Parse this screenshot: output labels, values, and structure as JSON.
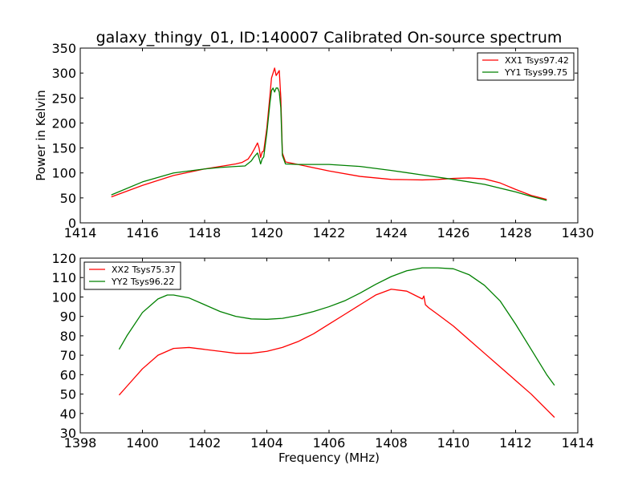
{
  "chart_data": [
    {
      "type": "line",
      "title": "galaxy_thingy_01, ID:140007 Calibrated On-source spectrum",
      "xlabel": "",
      "ylabel": "Power in Kelvin",
      "xlim": [
        1414,
        1430
      ],
      "ylim": [
        0,
        350
      ],
      "xticks": [
        "1414",
        "1416",
        "1418",
        "1420",
        "1422",
        "1424",
        "1426",
        "1428",
        "1430"
      ],
      "yticks": [
        "0",
        "50",
        "100",
        "150",
        "200",
        "250",
        "300",
        "350"
      ],
      "legend_position": "top-right",
      "series": [
        {
          "name": "XX1 Tsys97.42",
          "color": "#ff0000",
          "x": [
            1415.0,
            1416.0,
            1417.0,
            1418.0,
            1418.5,
            1419.0,
            1419.2,
            1419.4,
            1419.5,
            1419.6,
            1419.7,
            1419.75,
            1419.8,
            1419.85,
            1419.9,
            1420.0,
            1420.1,
            1420.15,
            1420.2,
            1420.25,
            1420.3,
            1420.35,
            1420.4,
            1420.45,
            1420.5,
            1420.6,
            1421.0,
            1422.0,
            1423.0,
            1424.0,
            1425.0,
            1425.5,
            1426.0,
            1426.5,
            1427.0,
            1427.5,
            1428.0,
            1428.5,
            1429.0
          ],
          "y": [
            52,
            75,
            95,
            108,
            113,
            118,
            121,
            128,
            137,
            148,
            160,
            150,
            131,
            142,
            144,
            190,
            255,
            290,
            300,
            310,
            295,
            300,
            305,
            250,
            140,
            122,
            117,
            104,
            93,
            87,
            86,
            87,
            89,
            90,
            88,
            80,
            67,
            55,
            47
          ]
        },
        {
          "name": "YY1 Tsys99.75",
          "color": "#008000",
          "x": [
            1415.0,
            1416.0,
            1417.0,
            1418.0,
            1418.5,
            1419.0,
            1419.3,
            1419.5,
            1419.6,
            1419.7,
            1419.75,
            1419.8,
            1419.85,
            1419.9,
            1420.0,
            1420.1,
            1420.15,
            1420.2,
            1420.25,
            1420.3,
            1420.35,
            1420.4,
            1420.45,
            1420.5,
            1420.6,
            1421.0,
            1422.0,
            1423.0,
            1424.0,
            1425.0,
            1426.0,
            1427.0,
            1428.0,
            1428.5,
            1429.0
          ],
          "y": [
            56,
            82,
            100,
            108,
            111,
            113,
            114,
            124,
            133,
            140,
            130,
            118,
            128,
            132,
            180,
            240,
            265,
            270,
            262,
            270,
            270,
            262,
            230,
            135,
            118,
            117,
            117,
            113,
            105,
            96,
            87,
            77,
            62,
            53,
            45
          ]
        }
      ]
    },
    {
      "type": "line",
      "title": "",
      "xlabel": "Frequency (MHz)",
      "ylabel": "",
      "xlim": [
        1398,
        1414
      ],
      "ylim": [
        30,
        120
      ],
      "xticks": [
        "1398",
        "1400",
        "1402",
        "1404",
        "1406",
        "1408",
        "1410",
        "1412",
        "1414"
      ],
      "yticks": [
        "30",
        "40",
        "50",
        "60",
        "70",
        "80",
        "90",
        "100",
        "110",
        "120"
      ],
      "legend_position": "top-left",
      "series": [
        {
          "name": "XX2 Tsys75.37",
          "color": "#ff0000",
          "x": [
            1399.25,
            1399.5,
            1400.0,
            1400.5,
            1401.0,
            1401.5,
            1402.0,
            1402.5,
            1403.0,
            1403.5,
            1404.0,
            1404.5,
            1405.0,
            1405.5,
            1406.0,
            1406.5,
            1407.0,
            1407.5,
            1408.0,
            1408.5,
            1409.0,
            1409.05,
            1409.1,
            1409.2,
            1409.5,
            1410.0,
            1410.5,
            1411.0,
            1411.5,
            1412.0,
            1412.5,
            1413.0,
            1413.25
          ],
          "y": [
            49.5,
            54,
            63,
            70,
            73.5,
            74,
            73,
            72,
            71,
            71,
            72,
            74,
            77,
            81,
            86,
            91,
            96,
            101,
            104,
            103,
            99,
            100.5,
            96,
            94.5,
            91,
            85,
            78,
            71,
            64,
            57,
            50,
            42,
            38
          ]
        },
        {
          "name": "YY2 Tsys96.22",
          "color": "#008000",
          "x": [
            1399.25,
            1399.5,
            1400.0,
            1400.5,
            1400.8,
            1401.0,
            1401.5,
            1402.0,
            1402.5,
            1403.0,
            1403.5,
            1404.0,
            1404.5,
            1405.0,
            1405.5,
            1406.0,
            1406.5,
            1407.0,
            1407.5,
            1408.0,
            1408.5,
            1409.0,
            1409.5,
            1410.0,
            1410.5,
            1411.0,
            1411.5,
            1412.0,
            1412.5,
            1413.0,
            1413.25
          ],
          "y": [
            73,
            80,
            92,
            99,
            101,
            101,
            99.5,
            96,
            92.5,
            90,
            88.7,
            88.5,
            89,
            90.5,
            92.5,
            95,
            98,
            102,
            106.5,
            110.5,
            113.5,
            115,
            115,
            114.5,
            111.5,
            106,
            98,
            86,
            73,
            60,
            54.5
          ]
        }
      ]
    }
  ]
}
